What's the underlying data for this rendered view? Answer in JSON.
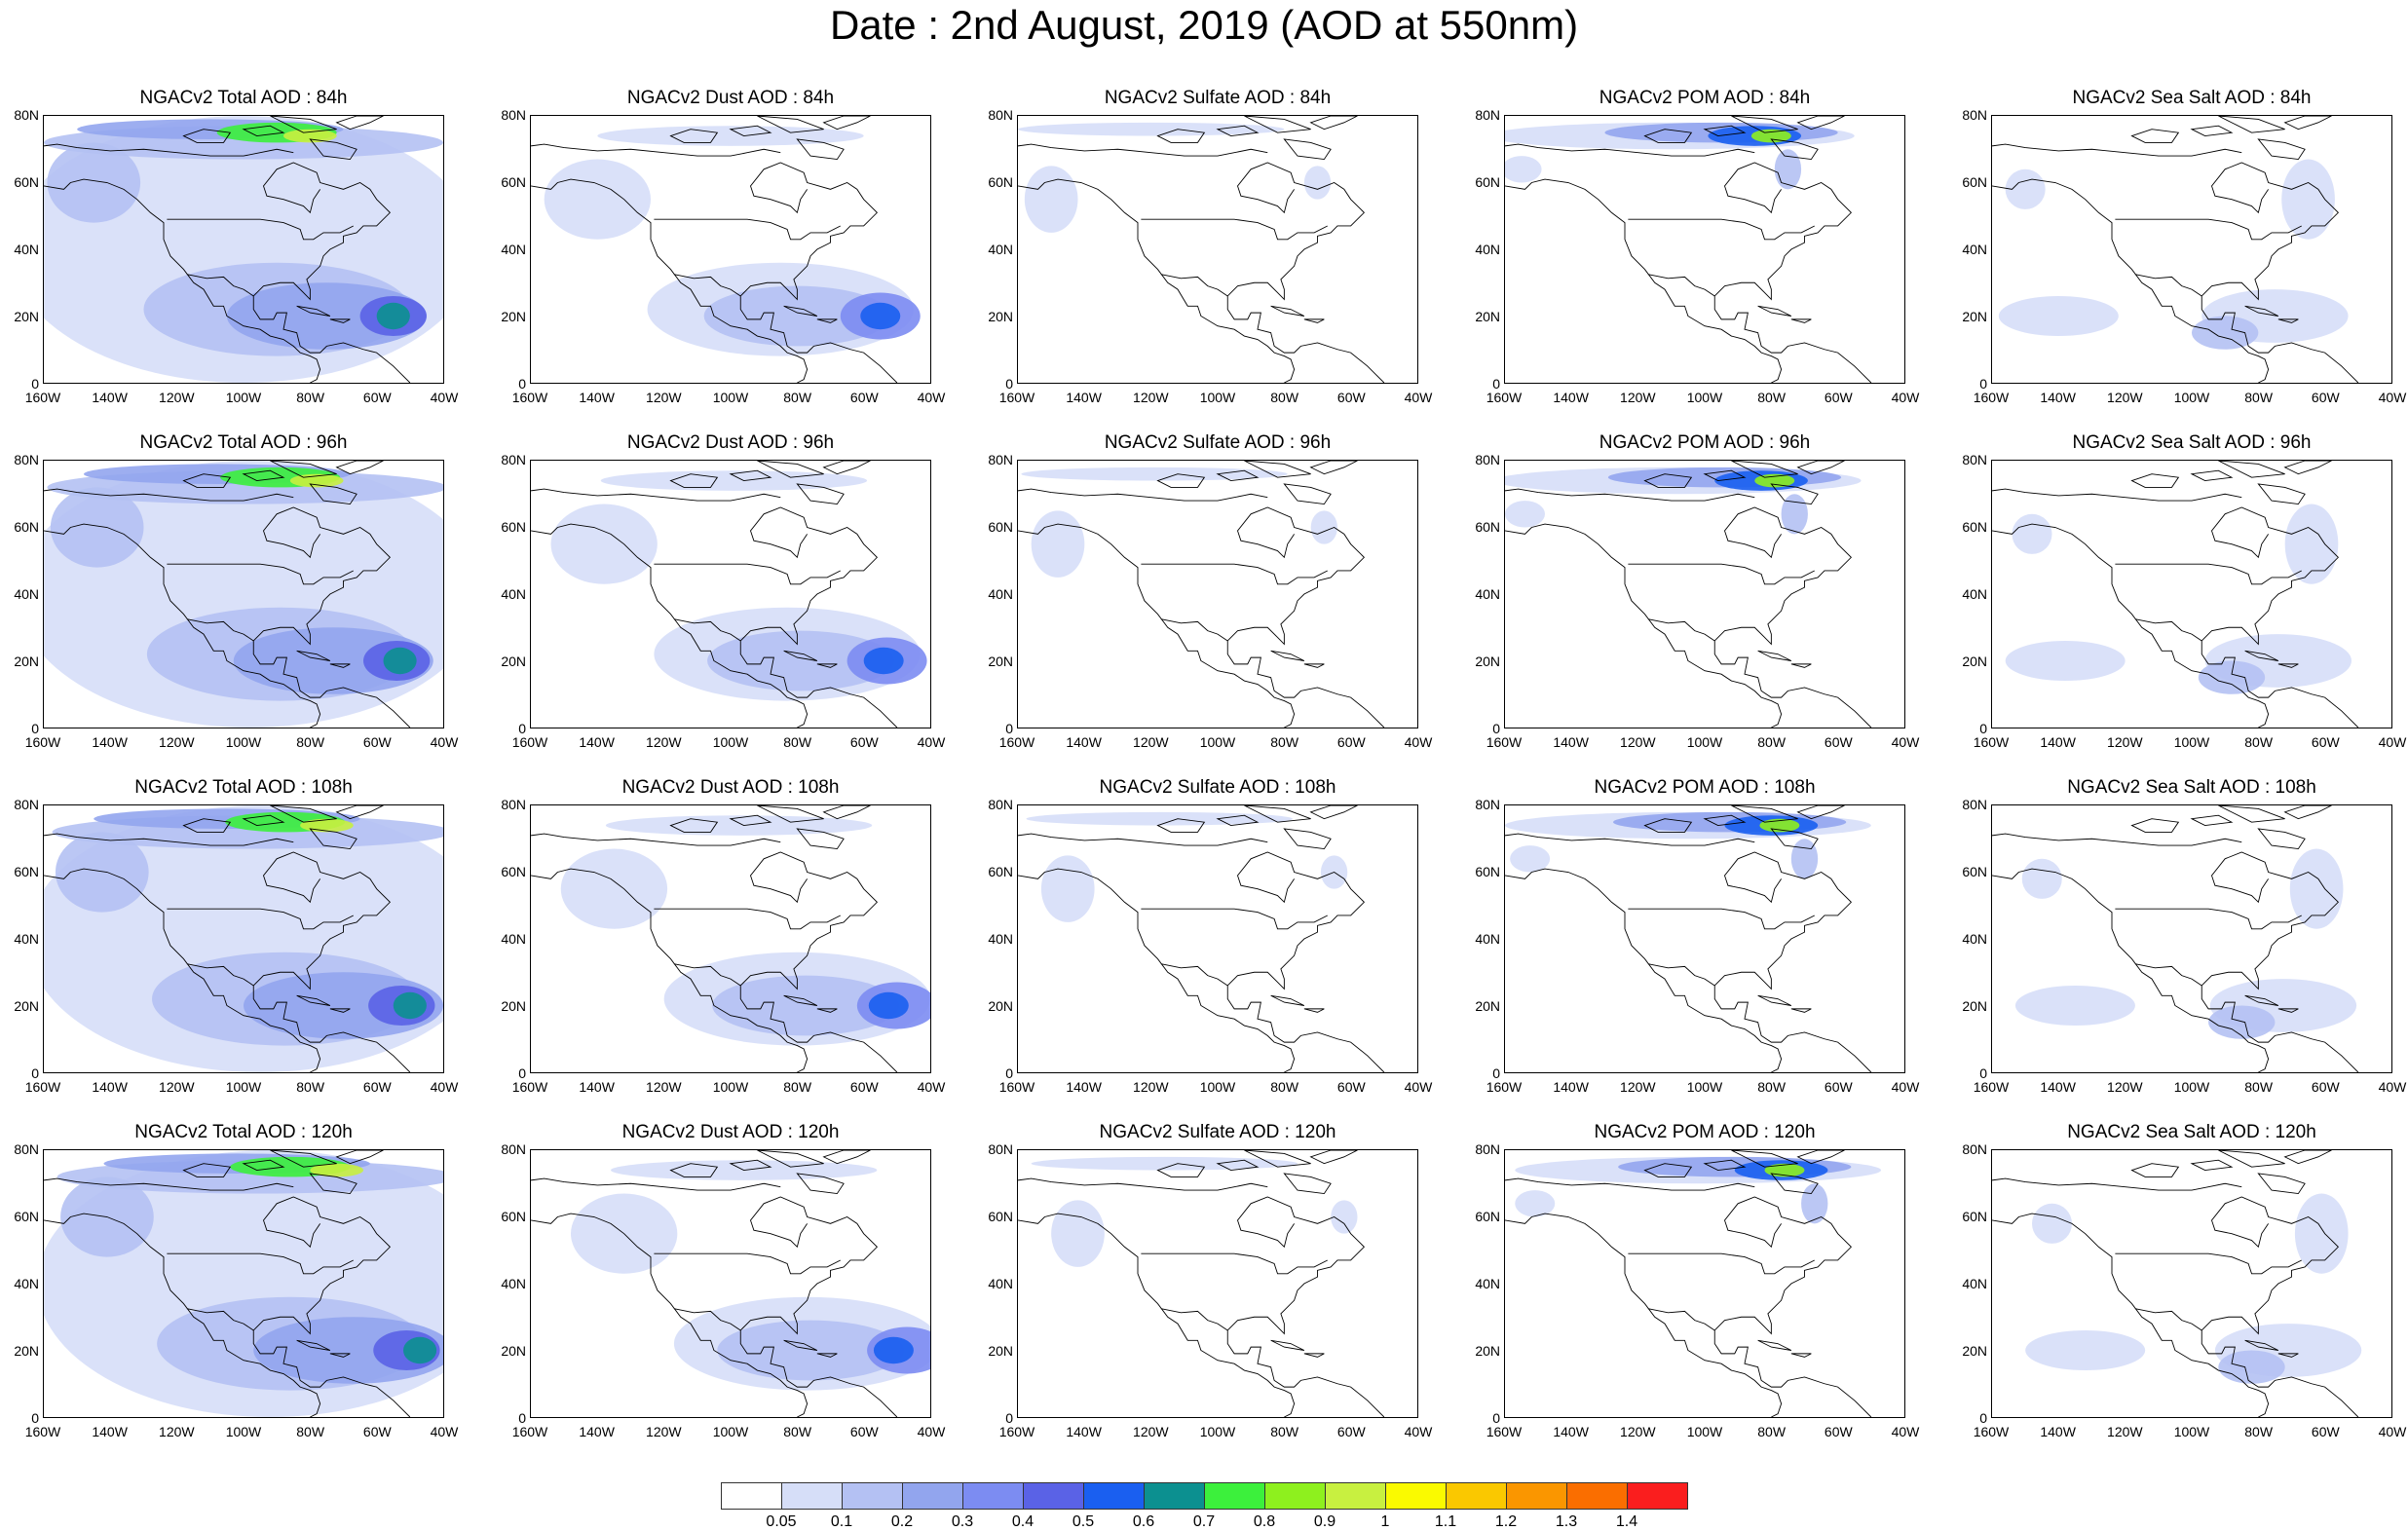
{
  "title": "Date : 2nd August, 2019 (AOD at 550nm)",
  "map_axes": {
    "lat_labels": [
      "80N",
      "60N",
      "40N",
      "20N",
      "0"
    ],
    "lon_labels": [
      "160W",
      "140W",
      "120W",
      "100W",
      "80W",
      "60W",
      "40W"
    ]
  },
  "panels": [
    {
      "title": "NGACv2 Total AOD : 84h",
      "product": "total",
      "forecast_hour": 84
    },
    {
      "title": "NGACv2 Dust AOD : 84h",
      "product": "dust",
      "forecast_hour": 84
    },
    {
      "title": "NGACv2 Sulfate AOD : 84h",
      "product": "sulfate",
      "forecast_hour": 84
    },
    {
      "title": "NGACv2 POM AOD : 84h",
      "product": "pom",
      "forecast_hour": 84
    },
    {
      "title": "NGACv2 Sea Salt AOD : 84h",
      "product": "seasalt",
      "forecast_hour": 84
    },
    {
      "title": "NGACv2 Total AOD : 96h",
      "product": "total",
      "forecast_hour": 96
    },
    {
      "title": "NGACv2 Dust AOD : 96h",
      "product": "dust",
      "forecast_hour": 96
    },
    {
      "title": "NGACv2 Sulfate AOD : 96h",
      "product": "sulfate",
      "forecast_hour": 96
    },
    {
      "title": "NGACv2 POM AOD : 96h",
      "product": "pom",
      "forecast_hour": 96
    },
    {
      "title": "NGACv2 Sea Salt AOD : 96h",
      "product": "seasalt",
      "forecast_hour": 96
    },
    {
      "title": "NGACv2 Total AOD : 108h",
      "product": "total",
      "forecast_hour": 108
    },
    {
      "title": "NGACv2 Dust AOD : 108h",
      "product": "dust",
      "forecast_hour": 108
    },
    {
      "title": "NGACv2 Sulfate AOD : 108h",
      "product": "sulfate",
      "forecast_hour": 108
    },
    {
      "title": "NGACv2 POM AOD : 108h",
      "product": "pom",
      "forecast_hour": 108
    },
    {
      "title": "NGACv2 Sea Salt AOD : 108h",
      "product": "seasalt",
      "forecast_hour": 108
    },
    {
      "title": "NGACv2 Total AOD : 120h",
      "product": "total",
      "forecast_hour": 120
    },
    {
      "title": "NGACv2 Dust AOD : 120h",
      "product": "dust",
      "forecast_hour": 120
    },
    {
      "title": "NGACv2 Sulfate AOD : 120h",
      "product": "sulfate",
      "forecast_hour": 120
    },
    {
      "title": "NGACv2 POM AOD : 120h",
      "product": "pom",
      "forecast_hour": 120
    },
    {
      "title": "NGACv2 Sea Salt  AOD : 120h",
      "product": "seasalt",
      "forecast_hour": 120
    }
  ],
  "colorbar": {
    "colors": [
      "#ffffff",
      "#d6def8",
      "#b4c1f3",
      "#92a5ee",
      "#7c8cf2",
      "#5a62e6",
      "#1a5ff0",
      "#0c9090",
      "#3cf03c",
      "#8ef01e",
      "#c8f040",
      "#fafa00",
      "#fac800",
      "#fa9600",
      "#fa6e00",
      "#fa1e1e"
    ],
    "labels": [
      "0.05",
      "0.1",
      "0.2",
      "0.3",
      "0.4",
      "0.5",
      "0.6",
      "0.7",
      "0.8",
      "0.9",
      "1",
      "1.1",
      "1.2",
      "1.3",
      "1.4"
    ]
  }
}
